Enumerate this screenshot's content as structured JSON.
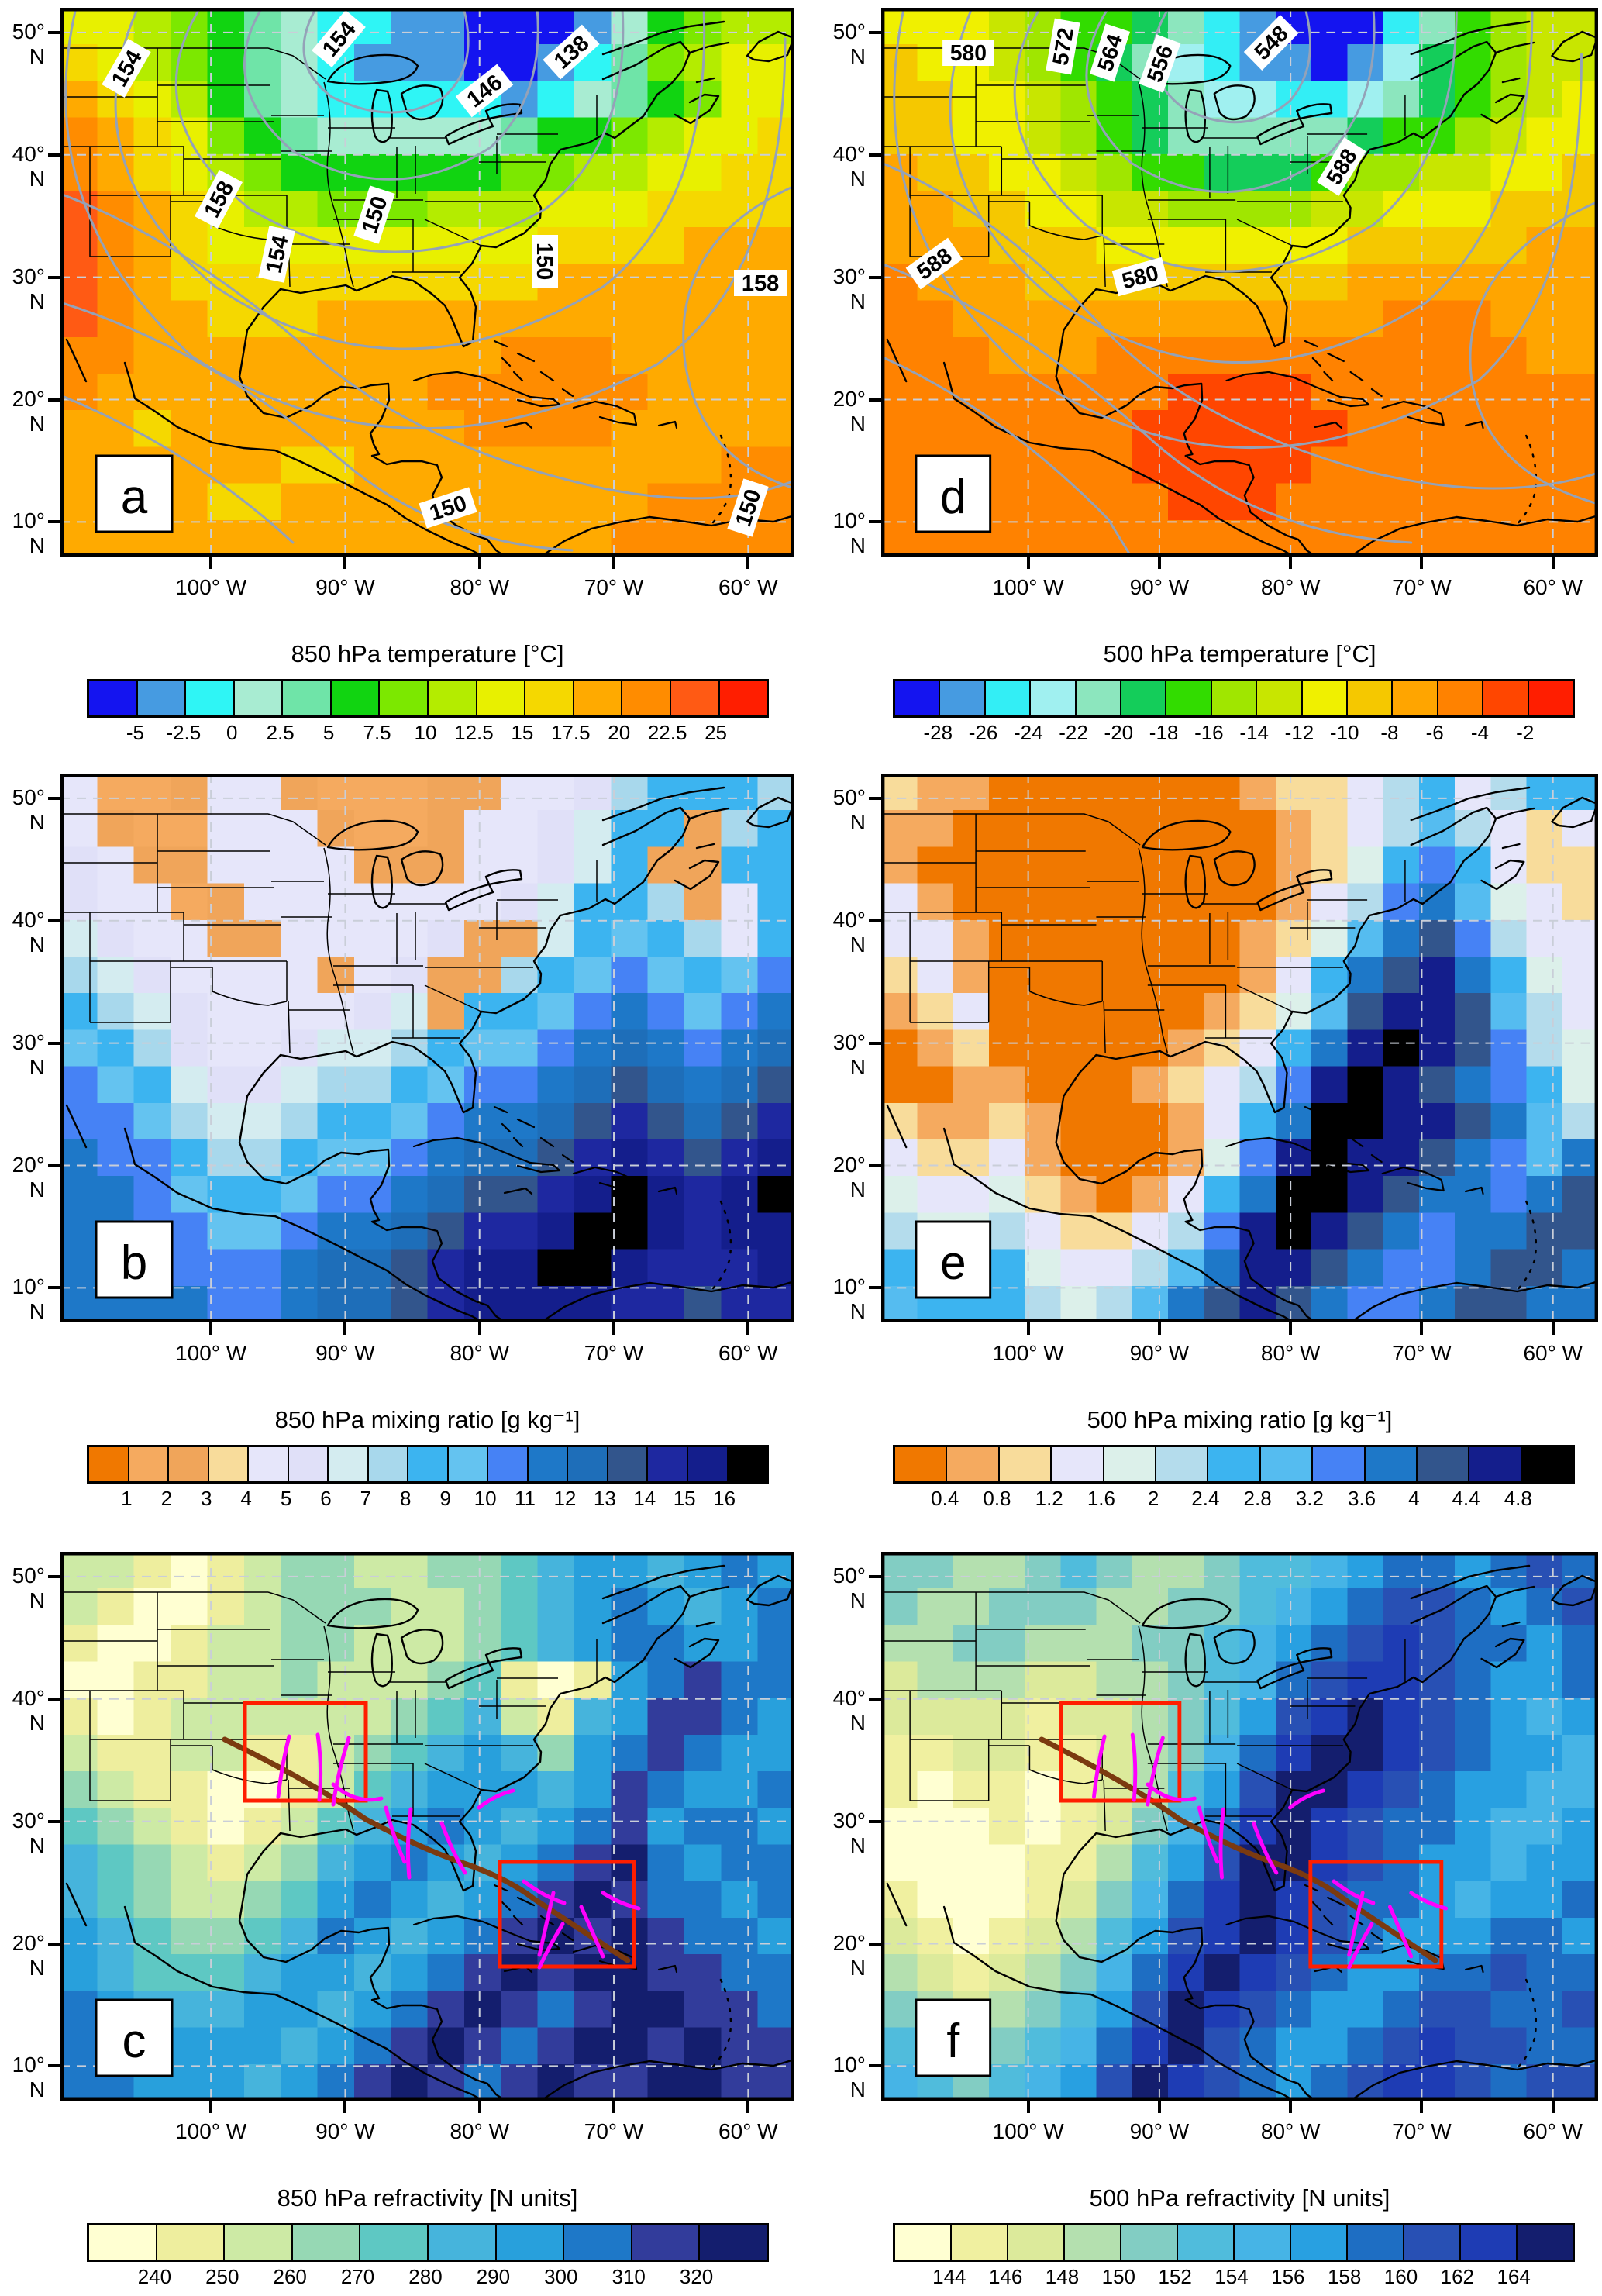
{
  "figure": {
    "type": "six-panel meteorological comparison figure",
    "background": "#ffffff",
    "panel_order_on_screen": [
      "a",
      "d",
      "b",
      "e",
      "c",
      "f"
    ]
  },
  "chart_data": {
    "type": "heatmap",
    "description": "Maps over North America / Gulf of Mexico / Caribbean of temperature, mixing ratio and refractivity at 850 hPa (left column, panels a,b,c) and 500 hPa (right column, panels d,e,f). Panels a,d have gray geopotential-height contours with labels; panels c,f have red analysis boxes, a dark-red storm track and magenta cross-section segments. Grids below are approximate palette-index fields read from the image.",
    "x_ticks": [
      "100° W",
      "90° W",
      "80° W",
      "70° W",
      "60° W"
    ],
    "y_ticks": [
      "50° N",
      "40° N",
      "30° N",
      "20° N",
      "10° N"
    ],
    "axis_ranges": {
      "lon_w": [
        111,
        56.5
      ],
      "lat_n": [
        7.5,
        52.3
      ]
    },
    "grid_lines": "dashed light gray every 10 degrees",
    "overlay_colors": {
      "analysis_box": "#ff1e00",
      "track": "#7b3a10",
      "cross_section": "#ff00ff",
      "contour": "#94a2b8",
      "frame": "#000000"
    },
    "panels": [
      {
        "letter": "a",
        "title": "850 hPa  temperature [°C]",
        "colorbar_ticks": [
          "-5",
          "-2.5",
          "0",
          "2.5",
          "5",
          "7.5",
          "10",
          "12.5",
          "15",
          "17.5",
          "20",
          "22.5",
          "25"
        ],
        "palette": [
          "#1414f0",
          "#469be1",
          "#2ff5f5",
          "#a8ecd2",
          "#6fe4a8",
          "#11d411",
          "#7ce800",
          "#b4ec00",
          "#e8f000",
          "#f5d800",
          "#ffaa00",
          "#ff8c00",
          "#ff5a14",
          "#ff1e00"
        ],
        "contour_labels": [
          "154",
          "154",
          "138",
          "146",
          "150",
          "158",
          "158",
          "154",
          "150",
          "150",
          "150"
        ],
        "has_overlays": false,
        "grid": [
          "88765432211000135677",
          "98765432111001246788",
          "a9875432222212345688",
          "ba986543333345567889",
          "ba987655555566778899",
          "cba98776667778889999",
          "cba98888888889999aaa",
          "cba9999999999aaaaaaa",
          "cbaa999aaaaaaaaaaaaa",
          "bbaaaaaaaaaabbbaaaaa",
          "baaaaaaaaabbbbbbaaaa",
          "aa9aaaaaaaabbbbaaaaa",
          "aaaaaa99aaaaaaaaaabb",
          "aaaa99aaaaaaaaaabbbb",
          "aaaaaaaaaaaaaaabbbbb"
        ]
      },
      {
        "letter": "d",
        "title": "500 hPa  temperature [°C]",
        "colorbar_ticks": [
          "-28",
          "-26",
          "-24",
          "-22",
          "-20",
          "-18",
          "-16",
          "-14",
          "-12",
          "-10",
          "-8",
          "-6",
          "-4",
          "-2"
        ],
        "palette": [
          "#1414f0",
          "#469be1",
          "#33eef5",
          "#a0f0f0",
          "#8ce6be",
          "#14cd5a",
          "#32dc00",
          "#a0e600",
          "#c8e600",
          "#f0f000",
          "#f5c800",
          "#ffa500",
          "#ff8200",
          "#ff4600",
          "#ff1e00"
        ],
        "contour_labels": [
          "580",
          "572",
          "564",
          "556",
          "548",
          "580",
          "588",
          "588"
        ],
        "has_overlays": false,
        "grid": [
          "99987665421000246788",
          "a9987654321101356788",
          "aa998765433223456789",
          "aa998765444445667899",
          "baa9987665556778899a",
          "bbaa9988777788999aaa",
          "bbbaaa9999999aaaaabb",
          "cbbbaaaaaaaaabbbbbbb",
          "ccbbbbbbbbbbbbcccbbb",
          "cccbbbccccccccccccbb",
          "ccccccccddddcccccccc",
          "cccccccddddddccccccc",
          "cccccccdddddcccccccc",
          "ccccccccdddccccccccc",
          "cccccccccccccccccccc"
        ]
      },
      {
        "letter": "b",
        "title": "850 hPa mixing  ratio [g kg⁻¹]",
        "colorbar_ticks": [
          "1",
          "2",
          "3",
          "4",
          "5",
          "6",
          "7",
          "8",
          "9",
          "10",
          "11",
          "12",
          "13",
          "14",
          "15",
          "16"
        ],
        "palette": [
          "#f07800",
          "#f5aa5f",
          "#f0a55a",
          "#f8dc9b",
          "#e6e6fa",
          "#e0e0f8",
          "#d4ecf0",
          "#a8d8ec",
          "#3cb4f0",
          "#64c3f0",
          "#4682f5",
          "#1e78c8",
          "#1e6eb9",
          "#32558c",
          "#1e28a0",
          "#141e8c",
          "#000000"
        ],
        "contour_labels": [],
        "has_overlays": false,
        "grid": [
          "41124421112244578887",
          "42114442112445688278",
          "54224444222445682288",
          "54412444444456887248",
          "65442244445226898748",
          "765444424522789a989a",
          "87654444562889aba9ab",
          "9875445667899abcbabc",
          "a9865567789aabcdcbcd",
          "aa97667889abbcdedcde",
          "baa877899abccdefedef",
          "bba9889aabcddefgfefg",
          "bbaa99abbcdeefggfeff",
          "bbbaaabccdeffggfeeef",
          "bbbbaabccdeffffeedee"
        ]
      },
      {
        "letter": "e",
        "title": "500 hPa mixing  ratio [g kg⁻¹]",
        "colorbar_ticks": [
          "0.4",
          "0.8",
          "1.2",
          "1.6",
          "2",
          "2.4",
          "2.8",
          "3.2",
          "3.6",
          "4",
          "4.4",
          "4.8"
        ],
        "palette": [
          "#f07800",
          "#f5aa5f",
          "#f8dc9b",
          "#e6e6fa",
          "#dcf0ea",
          "#b4dcec",
          "#3cb4f0",
          "#55bcf0",
          "#4682f5",
          "#1e78c8",
          "#32558c",
          "#141e8c",
          "#000000"
        ],
        "contour_labels": [],
        "has_overlays": false,
        "grid": [
          "21100000001223563566",
          "11000000000123575323",
          "10000000000124686322",
          "31000000000135897432",
          "331000000012479a8533",
          "23100000001369ab9643",
          "1230000001247abba753",
          "0120000012369bcba854",
          "001100012358bcba9864",
          "211210001369ccbba975",
          "32231000148bcbba9879",
          "43342101369ccba9989a",
          "5445322358bcba9899aa",
          "6556433579bba9889aa9",
          "766654579aba9889aa99"
        ]
      },
      {
        "letter": "c",
        "title": "850 hPa  refractivity [N units]",
        "colorbar_ticks": [
          "240",
          "250",
          "260",
          "270",
          "280",
          "290",
          "300",
          "310",
          "320"
        ],
        "palette": [
          "#ffffd2",
          "#eeee9e",
          "#cdeaa5",
          "#96d8b4",
          "#5ec8c3",
          "#46b4dc",
          "#28a0dc",
          "#1e78c8",
          "#323c9b",
          "#141e6e"
        ],
        "contour_labels": [],
        "has_overlays": true,
        "grid": [
          "22101233223345665676",
          "21001233322345676567",
          "10012233222345677667",
          "00112232223410167877",
          "10122222234521568876",
          "21122112345653678766",
          "32110012456665687667",
          "43210124567656786776",
          "54321235676567897677",
          "54322346765678987767",
          "65433457656789898776",
          "65444566567898998877",
          "76555665678987899887",
          "76666656789878998988",
          "77666567898789889988"
        ]
      },
      {
        "letter": "f",
        "title": "500 hPa  refractivity [N units]",
        "colorbar_ticks": [
          "144",
          "146",
          "148",
          "150",
          "152",
          "154",
          "156",
          "158",
          "160",
          "162",
          "164"
        ],
        "palette": [
          "#ffffd2",
          "#f0f0a0",
          "#dcea9b",
          "#b4e0af",
          "#82cdc3",
          "#50bcdc",
          "#46b4e6",
          "#28a0e1",
          "#1e6ec3",
          "#2850b4",
          "#1e3cb4",
          "#141e6e"
        ],
        "contour_labels": [],
        "has_overlays": true,
        "grid": [
          "44334543345567887898",
          "43344433445678998789",
          "33443334456789a98878",
          "2333223345689aa98778",
          "222212234579aba98767",
          "11221123468abba98776",
          "10110123579bba987766",
          "0001012468aba9887667",
          "0000113579bba9877677",
          "100012468aba98876778",
          "210123579aba98777887",
          "32123468aba987788988",
          "43234579ba9877899889",
          "5434568ab987789a9988",
          "6545679ba98789aa9899"
        ]
      }
    ]
  }
}
